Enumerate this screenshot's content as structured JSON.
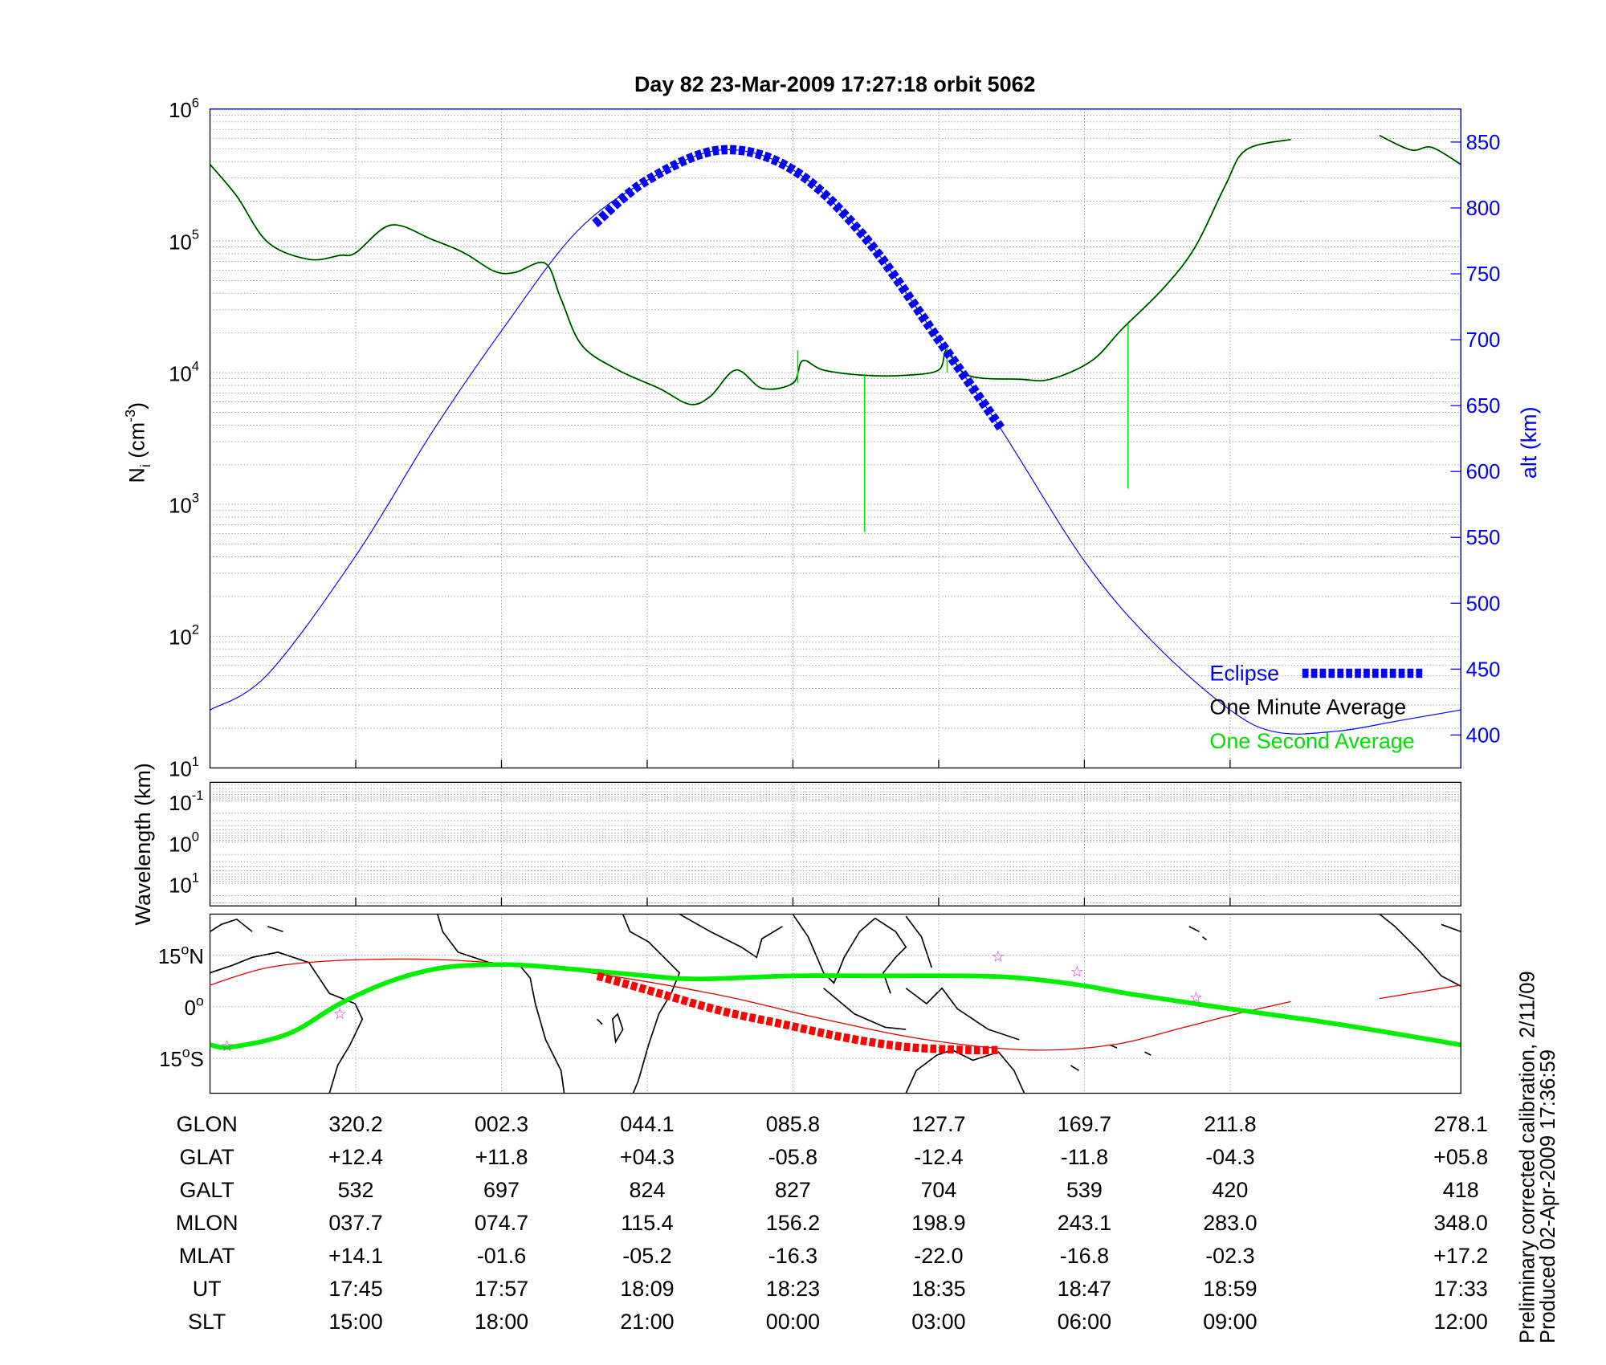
{
  "title": "Day 82  23-Mar-2009 17:27:18   orbit 5062",
  "footnote": [
    "Preliminary corrected calibration, 2/11/09",
    "Produced 02-Apr-2009 17:36:59"
  ],
  "colors": {
    "alt": "#0000ff",
    "one_minute": "#000000",
    "one_second": "#00e000",
    "track": "#00ee00",
    "mag_equator": "#dd0000",
    "eclipse_map": "#ff0000",
    "stars": "#cc33cc"
  },
  "chart_data": [
    {
      "type": "line",
      "panel": "density",
      "title": "Day 82  23-Mar-2009 17:27:18   orbit 5062",
      "xlabel": "",
      "x_units": "minutes from plot start",
      "xlim": [
        0,
        103
      ],
      "x_ticks": [
        12,
        24,
        36,
        48,
        60,
        72,
        84
      ],
      "ylabel_left": {
        "base": "N",
        "sub": "i",
        "rest": " (cm",
        "sup": "-3",
        "close": ")"
      },
      "y_left_scale": "log",
      "y_left_ticks_exp": [
        1,
        2,
        3,
        4,
        5,
        6
      ],
      "ylabel_right": "alt (km)",
      "y_right_ticks": [
        400,
        450,
        500,
        550,
        600,
        650,
        700,
        750,
        800,
        850
      ],
      "y_right_lim": [
        375,
        875
      ],
      "grid": true,
      "legend": {
        "placement": "bottom-right",
        "entries": [
          "Eclipse",
          "One Minute Average",
          "One Second Average"
        ]
      },
      "series": [
        {
          "name": "alt",
          "axis": "right",
          "points": [
            [
              0,
              419
            ],
            [
              4.75,
              446
            ],
            [
              12,
              536
            ],
            [
              18.3,
              630
            ],
            [
              24.1,
              708
            ],
            [
              30.2,
              782
            ],
            [
              36,
              821
            ],
            [
              42.1,
              844
            ],
            [
              48,
              829
            ],
            [
              53.9,
              778
            ],
            [
              60,
              700
            ],
            [
              65,
              634
            ],
            [
              72,
              532
            ],
            [
              77.7,
              470
            ],
            [
              84,
              419
            ],
            [
              87.9,
              402
            ],
            [
              92.9,
              403
            ],
            [
              98,
              411
            ],
            [
              103,
              419
            ]
          ]
        },
        {
          "name": "Eclipse",
          "axis": "right",
          "points": [
            [
              31.7,
              788
            ],
            [
              36,
              821
            ],
            [
              42.1,
              844
            ],
            [
              48,
              829
            ],
            [
              53.9,
              778
            ],
            [
              60,
              700
            ],
            [
              65.2,
              632
            ]
          ]
        },
        {
          "name": "One Minute Average",
          "axis": "left_log10",
          "segments": [
            [
              [
                0,
                5.58
              ],
              [
                2.2,
                5.34
              ],
              [
                4.75,
                4.99
              ],
              [
                8.14,
                4.86
              ],
              [
                10.7,
                4.89
              ],
              [
                12,
                4.91
              ],
              [
                14.9,
                5.12
              ],
              [
                18.3,
                5.01
              ],
              [
                20.9,
                4.91
              ],
              [
                23.4,
                4.77
              ],
              [
                25.1,
                4.76
              ],
              [
                27.6,
                4.83
              ],
              [
                28.9,
                4.56
              ],
              [
                30.6,
                4.21
              ],
              [
                33.6,
                4.02
              ],
              [
                37,
                3.88
              ],
              [
                39.5,
                3.76
              ],
              [
                41.2,
                3.82
              ],
              [
                43.3,
                4.02
              ],
              [
                45.5,
                3.88
              ],
              [
                48,
                3.92
              ],
              [
                48.8,
                4.09
              ],
              [
                50.5,
                4.02
              ],
              [
                53.9,
                3.98
              ],
              [
                57.3,
                3.98
              ],
              [
                60,
                4.02
              ],
              [
                60.7,
                4.17
              ],
              [
                62.4,
                3.98
              ],
              [
                66.7,
                3.95
              ],
              [
                69.2,
                3.95
              ],
              [
                72.6,
                4.09
              ],
              [
                75.1,
                4.33
              ],
              [
                78.5,
                4.64
              ],
              [
                81.1,
                4.95
              ],
              [
                83.6,
                5.42
              ],
              [
                85.3,
                5.69
              ],
              [
                89,
                5.77
              ]
            ],
            [
              [
                96.3,
                5.8
              ],
              [
                98.9,
                5.69
              ],
              [
                100.6,
                5.71
              ],
              [
                103,
                5.58
              ]
            ]
          ]
        },
        {
          "name": "One Second Average spikes",
          "axis": "left_log10",
          "spikes": [
            [
              48.4,
              3.92,
              4.17
            ],
            [
              53.9,
              3.98,
              2.79
            ],
            [
              75.6,
              4.37,
              3.12
            ],
            [
              60.7,
              4.0,
              4.2
            ]
          ]
        }
      ]
    },
    {
      "type": "line",
      "panel": "wavelength",
      "ylabel": "Wavelength (km)",
      "y_scale": "log",
      "y_ticks_exp": [
        -1,
        0,
        1
      ],
      "series": []
    },
    {
      "type": "line",
      "panel": "map",
      "y_ticks": [
        "15oN",
        "0o",
        "15oS"
      ],
      "y_tick_labels": [
        {
          "v": 15,
          "num": "15",
          "deg": "o",
          "hem": "N"
        },
        {
          "v": 0,
          "num": "0",
          "deg": "o",
          "hem": ""
        },
        {
          "v": -15,
          "num": "15",
          "deg": "o",
          "hem": "S"
        }
      ],
      "ylim": [
        -25.2,
        27
      ],
      "series": [
        {
          "name": "satellite track",
          "points": [
            [
              0,
              -11.1
            ],
            [
              1.8,
              -11.7
            ],
            [
              6.5,
              -7.8
            ],
            [
              10.7,
              0.9
            ],
            [
              14.9,
              7.5
            ],
            [
              19.2,
              11.4
            ],
            [
              24.3,
              12.3
            ],
            [
              28.5,
              11.4
            ],
            [
              36,
              9
            ],
            [
              40.3,
              8.1
            ],
            [
              48,
              9
            ],
            [
              55.6,
              9
            ],
            [
              62.4,
              9
            ],
            [
              66.7,
              8.4
            ],
            [
              71.7,
              6.3
            ],
            [
              76,
              3.6
            ],
            [
              84,
              -0.6
            ],
            [
              92.9,
              -5.1
            ],
            [
              103,
              -11.1
            ]
          ]
        },
        {
          "name": "magnetic equator",
          "segments": [
            [
              [
                0,
                6.3
              ],
              [
                4.75,
                11.4
              ],
              [
                10.7,
                13.5
              ],
              [
                18.3,
                13.8
              ],
              [
                25.1,
                12.3
              ],
              [
                31.9,
                9.6
              ],
              [
                42.1,
                3.3
              ],
              [
                50.5,
                -3.6
              ],
              [
                59,
                -9.6
              ],
              [
                67.5,
                -12.6
              ],
              [
                74.3,
                -11.1
              ],
              [
                80.2,
                -6
              ],
              [
                84.5,
                -2.1
              ],
              [
                89,
                1.5
              ]
            ],
            [
              [
                96.3,
                2.4
              ],
              [
                103,
                6.3
              ]
            ]
          ]
        },
        {
          "name": "eclipse track",
          "points": [
            [
              31.9,
              9
            ],
            [
              37,
              3.9
            ],
            [
              42.1,
              -1.2
            ],
            [
              47.2,
              -5.1
            ],
            [
              52.3,
              -9
            ],
            [
              57.3,
              -11.7
            ],
            [
              62.4,
              -12.6
            ],
            [
              65,
              -12.6
            ]
          ]
        },
        {
          "name": "stations",
          "stars": [
            [
              1.4,
              -11.1
            ],
            [
              10.7,
              -1.8
            ],
            [
              64.9,
              15
            ],
            [
              71.4,
              10.5
            ],
            [
              81.2,
              3
            ]
          ]
        }
      ]
    }
  ],
  "table": {
    "rows": [
      {
        "label": "GLON",
        "values": [
          "320.2",
          "002.3",
          "044.1",
          "085.8",
          "127.7",
          "169.7",
          "211.8",
          "278.1"
        ]
      },
      {
        "label": "GLAT",
        "values": [
          "+12.4",
          "+11.8",
          "+04.3",
          "-05.8",
          "-12.4",
          "-11.8",
          "-04.3",
          "+05.8"
        ]
      },
      {
        "label": "GALT",
        "values": [
          "532",
          "697",
          "824",
          "827",
          "704",
          "539",
          "420",
          "418"
        ]
      },
      {
        "label": "MLON",
        "values": [
          "037.7",
          "074.7",
          "115.4",
          "156.2",
          "198.9",
          "243.1",
          "283.0",
          "348.0"
        ]
      },
      {
        "label": "MLAT",
        "values": [
          "+14.1",
          "-01.6",
          "-05.2",
          "-16.3",
          "-22.0",
          "-16.8",
          "-02.3",
          "+17.2"
        ]
      },
      {
        "label": "UT",
        "values": [
          "17:45",
          "17:57",
          "18:09",
          "18:23",
          "18:35",
          "18:47",
          "18:59",
          "17:33"
        ]
      },
      {
        "label": "SLT",
        "values": [
          "15:00",
          "18:00",
          "21:00",
          "00:00",
          "03:00",
          "06:00",
          "09:00",
          "12:00"
        ]
      }
    ]
  }
}
